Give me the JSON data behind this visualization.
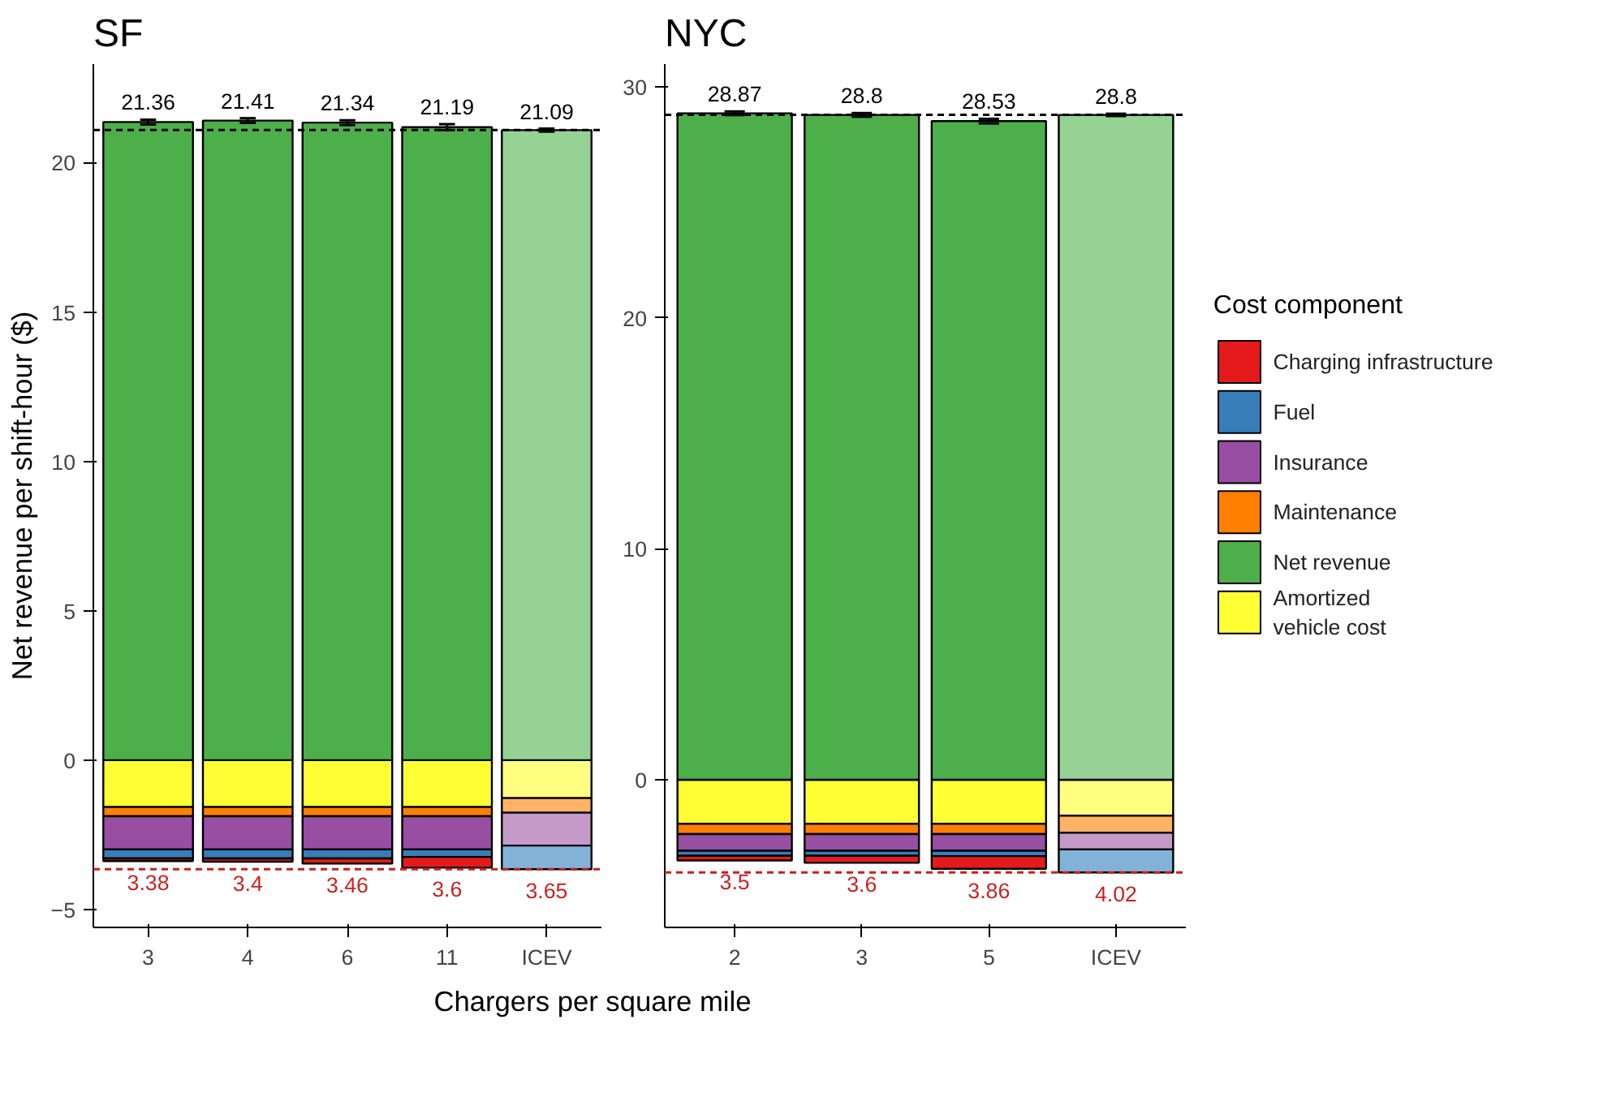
{
  "chart_data": [
    {
      "type": "bar",
      "title": "SF",
      "ylabel": "Net revenue per shift-hour ($)",
      "xlabel": "Chargers per square mile",
      "categories": [
        "3",
        "4",
        "6",
        "11",
        "ICEV"
      ],
      "stacked": true,
      "ylim": [
        -5.6,
        23.3
      ],
      "yticks": [
        -5,
        0,
        5,
        10,
        15,
        20
      ],
      "grid": false,
      "legend": false,
      "series": [
        {
          "colors": [
            "#ffff33",
            "#ffff33",
            "#ffff33",
            "#ffff33",
            "#ffff80"
          ],
          "values": [
            -1.57,
            -1.57,
            -1.57,
            -1.57,
            -1.27
          ]
        },
        {
          "colors": [
            "#4daf4a",
            "#4daf4a",
            "#4daf4a",
            "#4daf4a",
            "#95d294"
          ],
          "values": [
            21.36,
            21.41,
            21.34,
            21.19,
            21.09
          ],
          "errors": [
            0.08,
            0.08,
            0.08,
            0.1,
            0.05
          ],
          "value_labels": [
            "21.36",
            "21.41",
            "21.34",
            "21.19",
            "21.09"
          ]
        },
        {
          "colors": [
            "#ff7f00",
            "#ff7f00",
            "#ff7f00",
            "#ff7f00",
            "#ffb266"
          ],
          "values": [
            -0.31,
            -0.31,
            -0.31,
            -0.31,
            -0.49
          ]
        },
        {
          "colors": [
            "#984ea3",
            "#984ea3",
            "#984ea3",
            "#984ea3",
            "#c39ac8"
          ],
          "values": [
            -1.11,
            -1.11,
            -1.11,
            -1.11,
            -1.1
          ]
        },
        {
          "colors": [
            "#377eb8",
            "#377eb8",
            "#377eb8",
            "#377eb8",
            "#83b2d8"
          ],
          "values": [
            -0.3,
            -0.3,
            -0.3,
            -0.25,
            -0.79
          ]
        },
        {
          "colors": [
            "#e41a1c",
            "#e41a1c",
            "#e41a1c",
            "#e41a1c",
            "#e41a1c"
          ],
          "values": [
            -0.09,
            -0.11,
            -0.17,
            -0.36,
            null
          ]
        }
      ],
      "annotations": [
        {
          "text": "3.38",
          "x": "3",
          "y": -3.38
        },
        {
          "text": "3.4",
          "x": "4",
          "y": -3.4
        },
        {
          "text": "3.46",
          "x": "6",
          "y": -3.46
        },
        {
          "text": "3.6",
          "x": "11",
          "y": -3.6
        },
        {
          "text": "3.65",
          "x": "ICEV",
          "y": -3.65
        }
      ],
      "ref_lines": [
        {
          "axis": "y",
          "value": 21.09,
          "color": "#000000",
          "line_style": "dashed"
        },
        {
          "axis": "y",
          "value": -3.65,
          "color": "#cc1f1f",
          "line_style": "dashed"
        }
      ]
    },
    {
      "type": "bar",
      "title": "NYC",
      "categories": [
        "2",
        "3",
        "5",
        "ICEV"
      ],
      "stacked": true,
      "ylim": [
        -6.4,
        31
      ],
      "yticks": [
        0,
        10,
        20,
        30
      ],
      "grid": false,
      "legend": "right",
      "legend_title": "Cost component",
      "series": [
        {
          "name": "Amortized\nvehicle cost",
          "color": "#ffff33",
          "colors": [
            "#ffff33",
            "#ffff33",
            "#ffff33",
            "#ffff80"
          ],
          "values": [
            -1.91,
            -1.91,
            -1.91,
            -1.56
          ]
        },
        {
          "name": "Net revenue",
          "color": "#4daf4a",
          "colors": [
            "#4daf4a",
            "#4daf4a",
            "#4daf4a",
            "#95d294"
          ],
          "values": [
            28.87,
            28.8,
            28.53,
            28.8
          ],
          "errors": [
            0.08,
            0.08,
            0.1,
            0.05
          ],
          "value_labels": [
            "28.87",
            "28.8",
            "28.53",
            "28.8"
          ]
        },
        {
          "name": "Maintenance",
          "color": "#ff7f00",
          "colors": [
            "#ff7f00",
            "#ff7f00",
            "#ff7f00",
            "#ffb266"
          ],
          "values": [
            -0.45,
            -0.45,
            -0.45,
            -0.74
          ]
        },
        {
          "name": "Insurance",
          "color": "#984ea3",
          "colors": [
            "#984ea3",
            "#984ea3",
            "#984ea3",
            "#c39ac8"
          ],
          "values": [
            -0.72,
            -0.72,
            -0.72,
            -0.72
          ]
        },
        {
          "name": "Fuel",
          "color": "#377eb8",
          "colors": [
            "#377eb8",
            "#377eb8",
            "#377eb8",
            "#83b2d8"
          ],
          "values": [
            -0.22,
            -0.22,
            -0.23,
            -1.0
          ]
        },
        {
          "name": "Charging infrastructure",
          "color": "#e41a1c",
          "values": [
            -0.2,
            -0.3,
            -0.55,
            null
          ]
        }
      ],
      "annotations": [
        {
          "text": "3.5",
          "x": "2",
          "y": -3.5
        },
        {
          "text": "3.6",
          "x": "3",
          "y": -3.6
        },
        {
          "text": "3.86",
          "x": "5",
          "y": -3.86
        },
        {
          "text": "4.02",
          "x": "ICEV",
          "y": -4.02
        }
      ],
      "ref_lines": [
        {
          "axis": "y",
          "value": 28.8,
          "color": "#000000",
          "line_style": "dashed"
        },
        {
          "axis": "y",
          "value": -4.02,
          "color": "#cc1f1f",
          "line_style": "dashed"
        }
      ]
    }
  ]
}
